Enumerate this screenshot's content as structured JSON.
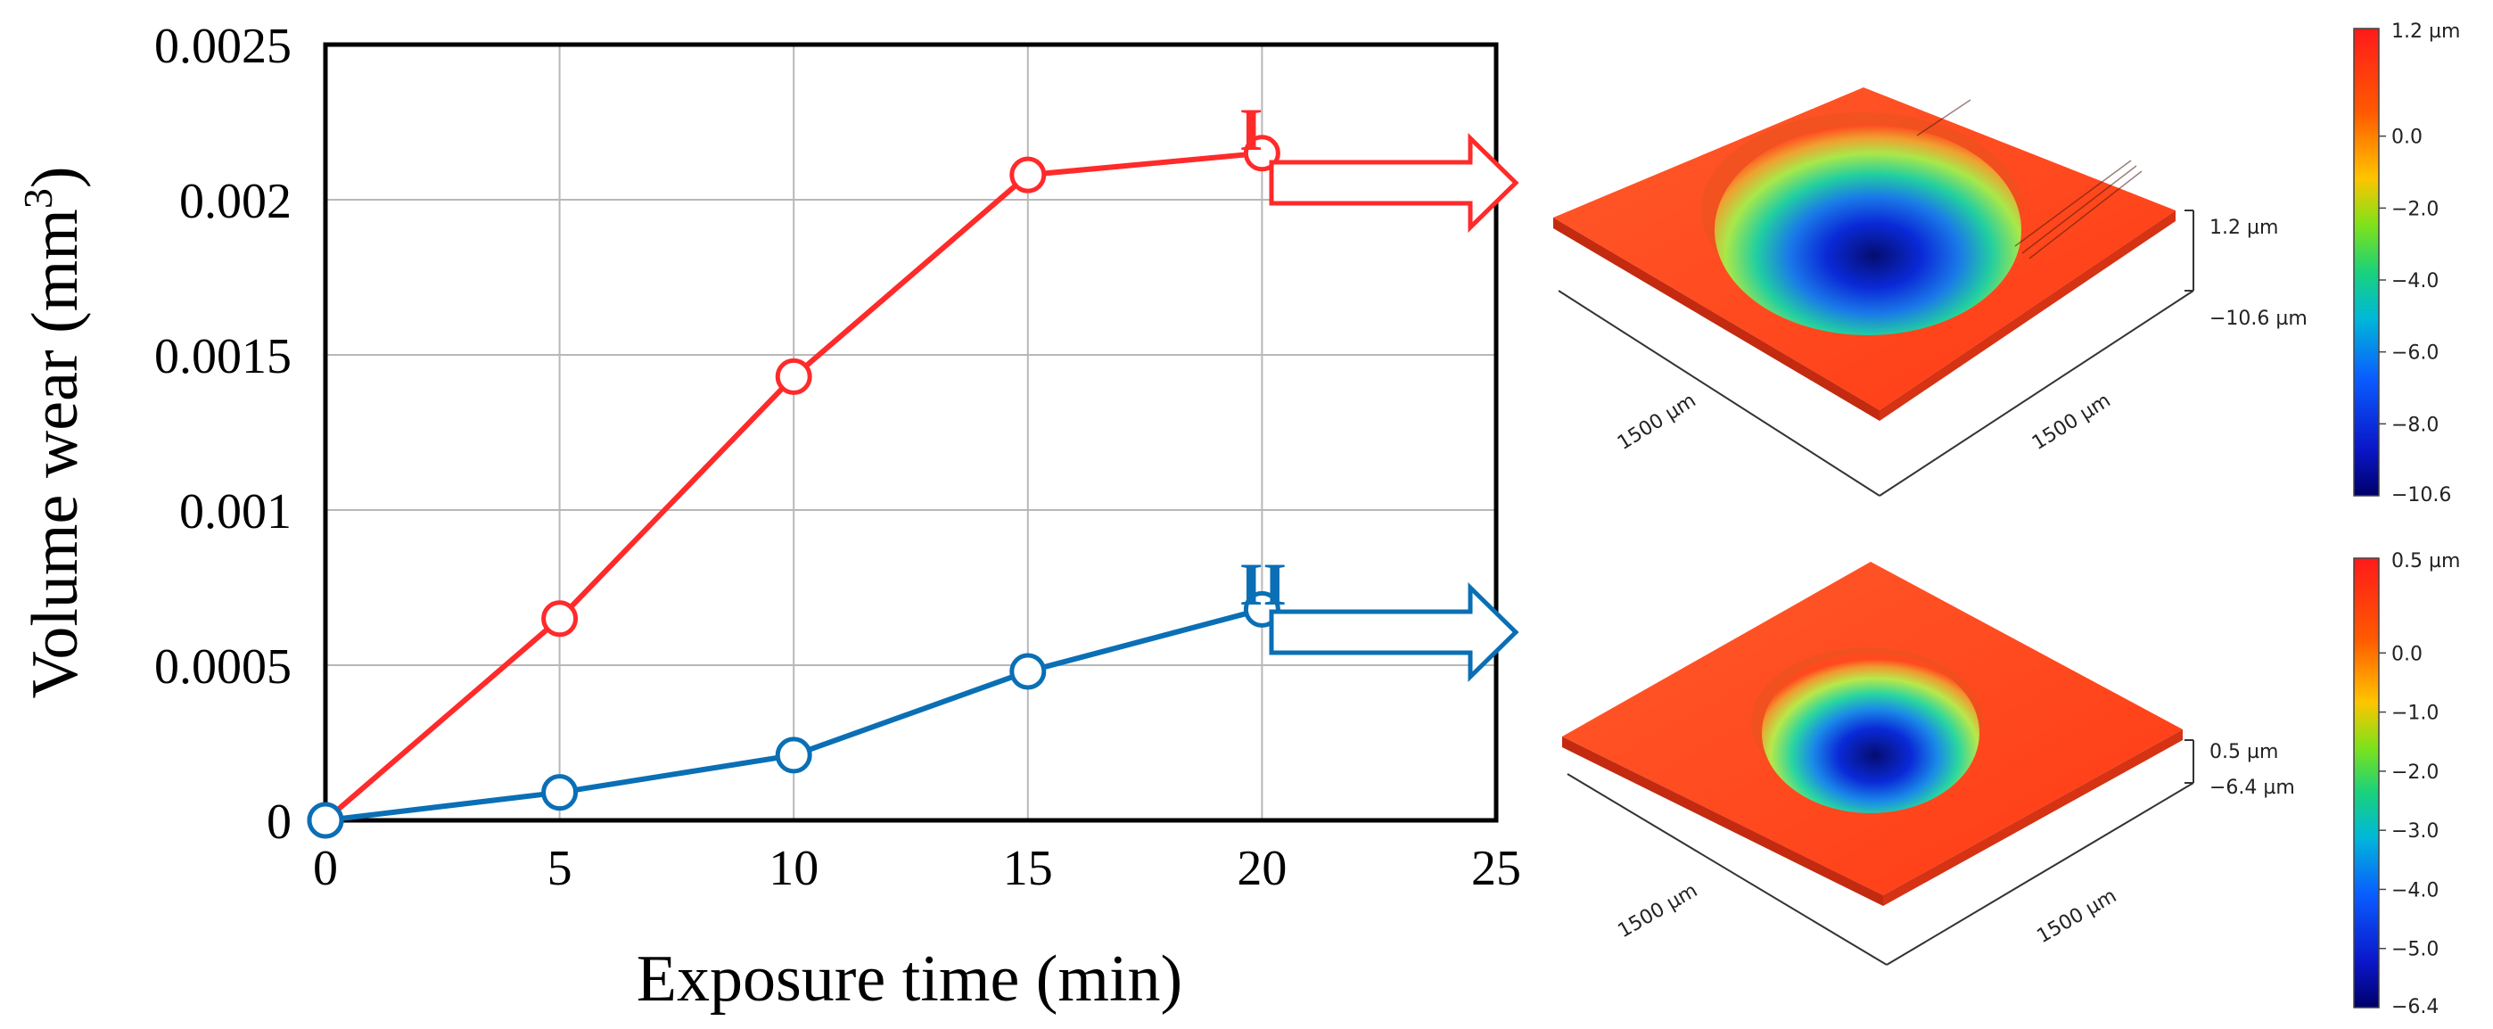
{
  "chart_data": {
    "type": "line",
    "xlabel": "Exposure time (min)",
    "ylabel": "Volume wear (mm",
    "ylabel_exponent": "3",
    "ylabel_close": ")",
    "xlim": [
      0,
      25
    ],
    "ylim": [
      0,
      0.0025
    ],
    "x_ticks": [
      0,
      5,
      10,
      15,
      20,
      25
    ],
    "x_tick_labels": [
      "0",
      "5",
      "10",
      "15",
      "20",
      "25"
    ],
    "y_ticks": [
      0,
      0.0005,
      0.001,
      0.0015,
      0.002,
      0.0025
    ],
    "y_tick_labels": [
      "0",
      "0.0005",
      "0.001",
      "0.0015",
      "0.002",
      "0.0025"
    ],
    "grid": true,
    "x": [
      0,
      5,
      10,
      15,
      20
    ],
    "series": [
      {
        "name": "I",
        "color": "#ff2a2a",
        "values": [
          0,
          0.00065,
          0.00143,
          0.00208,
          0.00215
        ]
      },
      {
        "name": "II",
        "color": "#0a6fb5",
        "values": [
          0,
          9e-05,
          0.00021,
          0.00048,
          0.00068
        ]
      }
    ]
  },
  "surface_maps": [
    {
      "series": "I",
      "arrow_color": "#ff2a2a",
      "scale_label_top": "1.2 µm",
      "scale_labels": [
        "0.0",
        "−2.0",
        "−4.0",
        "−6.0",
        "−8.0"
      ],
      "scale_label_bottom": "−10.6",
      "z_top_label": "1.2 µm",
      "z_bottom_label": "−10.6 µm",
      "axis_label_left": "1500 µm",
      "axis_label_right": "1500 µm"
    },
    {
      "series": "II",
      "arrow_color": "#0a6fb5",
      "scale_label_top": "0.5 µm",
      "scale_labels": [
        "0.0",
        "−1.0",
        "−2.0",
        "−3.0",
        "−4.0",
        "−5.0"
      ],
      "scale_label_bottom": "−6.4",
      "z_top_label": "0.5 µm",
      "z_bottom_label": "−6.4 µm",
      "axis_label_left": "1500 µm",
      "axis_label_right": "1500 µm"
    }
  ],
  "colors": {
    "surface_red": "#ff3d1a",
    "surface_red_light": "#ff5a2e",
    "crater_blue": "#0f2fe0",
    "crater_deep": "#0a1a8a",
    "crater_green": "#34d66a",
    "crater_yellow": "#c9ec34",
    "grid": "#b8b8b8"
  }
}
